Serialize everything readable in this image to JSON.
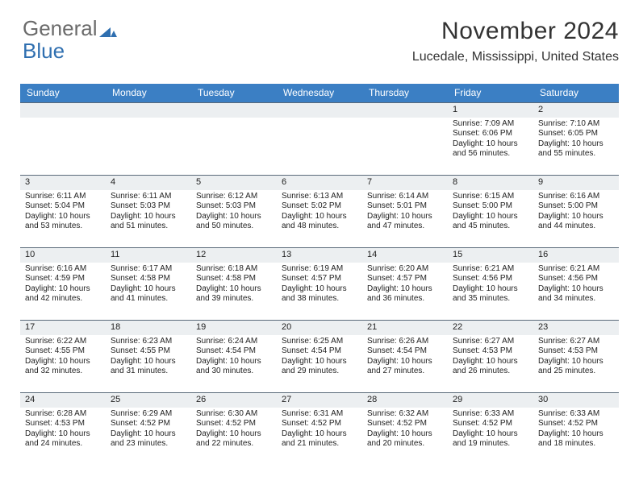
{
  "logo": {
    "text_gray": "General",
    "text_blue": "Blue",
    "mark_color": "#2f6fb0"
  },
  "header": {
    "month_title": "November 2024",
    "location": "Lucedale, Mississippi, United States"
  },
  "colors": {
    "header_row_bg": "#3b7fc4",
    "header_row_text": "#ffffff",
    "daynum_bg": "#eceff1",
    "daynum_border": "#5a6a7a"
  },
  "day_headers": [
    "Sunday",
    "Monday",
    "Tuesday",
    "Wednesday",
    "Thursday",
    "Friday",
    "Saturday"
  ],
  "weeks": [
    [
      {
        "n": "",
        "sunrise": "",
        "sunset": "",
        "daylight": ""
      },
      {
        "n": "",
        "sunrise": "",
        "sunset": "",
        "daylight": ""
      },
      {
        "n": "",
        "sunrise": "",
        "sunset": "",
        "daylight": ""
      },
      {
        "n": "",
        "sunrise": "",
        "sunset": "",
        "daylight": ""
      },
      {
        "n": "",
        "sunrise": "",
        "sunset": "",
        "daylight": ""
      },
      {
        "n": "1",
        "sunrise": "Sunrise: 7:09 AM",
        "sunset": "Sunset: 6:06 PM",
        "daylight": "Daylight: 10 hours and 56 minutes."
      },
      {
        "n": "2",
        "sunrise": "Sunrise: 7:10 AM",
        "sunset": "Sunset: 6:05 PM",
        "daylight": "Daylight: 10 hours and 55 minutes."
      }
    ],
    [
      {
        "n": "3",
        "sunrise": "Sunrise: 6:11 AM",
        "sunset": "Sunset: 5:04 PM",
        "daylight": "Daylight: 10 hours and 53 minutes."
      },
      {
        "n": "4",
        "sunrise": "Sunrise: 6:11 AM",
        "sunset": "Sunset: 5:03 PM",
        "daylight": "Daylight: 10 hours and 51 minutes."
      },
      {
        "n": "5",
        "sunrise": "Sunrise: 6:12 AM",
        "sunset": "Sunset: 5:03 PM",
        "daylight": "Daylight: 10 hours and 50 minutes."
      },
      {
        "n": "6",
        "sunrise": "Sunrise: 6:13 AM",
        "sunset": "Sunset: 5:02 PM",
        "daylight": "Daylight: 10 hours and 48 minutes."
      },
      {
        "n": "7",
        "sunrise": "Sunrise: 6:14 AM",
        "sunset": "Sunset: 5:01 PM",
        "daylight": "Daylight: 10 hours and 47 minutes."
      },
      {
        "n": "8",
        "sunrise": "Sunrise: 6:15 AM",
        "sunset": "Sunset: 5:00 PM",
        "daylight": "Daylight: 10 hours and 45 minutes."
      },
      {
        "n": "9",
        "sunrise": "Sunrise: 6:16 AM",
        "sunset": "Sunset: 5:00 PM",
        "daylight": "Daylight: 10 hours and 44 minutes."
      }
    ],
    [
      {
        "n": "10",
        "sunrise": "Sunrise: 6:16 AM",
        "sunset": "Sunset: 4:59 PM",
        "daylight": "Daylight: 10 hours and 42 minutes."
      },
      {
        "n": "11",
        "sunrise": "Sunrise: 6:17 AM",
        "sunset": "Sunset: 4:58 PM",
        "daylight": "Daylight: 10 hours and 41 minutes."
      },
      {
        "n": "12",
        "sunrise": "Sunrise: 6:18 AM",
        "sunset": "Sunset: 4:58 PM",
        "daylight": "Daylight: 10 hours and 39 minutes."
      },
      {
        "n": "13",
        "sunrise": "Sunrise: 6:19 AM",
        "sunset": "Sunset: 4:57 PM",
        "daylight": "Daylight: 10 hours and 38 minutes."
      },
      {
        "n": "14",
        "sunrise": "Sunrise: 6:20 AM",
        "sunset": "Sunset: 4:57 PM",
        "daylight": "Daylight: 10 hours and 36 minutes."
      },
      {
        "n": "15",
        "sunrise": "Sunrise: 6:21 AM",
        "sunset": "Sunset: 4:56 PM",
        "daylight": "Daylight: 10 hours and 35 minutes."
      },
      {
        "n": "16",
        "sunrise": "Sunrise: 6:21 AM",
        "sunset": "Sunset: 4:56 PM",
        "daylight": "Daylight: 10 hours and 34 minutes."
      }
    ],
    [
      {
        "n": "17",
        "sunrise": "Sunrise: 6:22 AM",
        "sunset": "Sunset: 4:55 PM",
        "daylight": "Daylight: 10 hours and 32 minutes."
      },
      {
        "n": "18",
        "sunrise": "Sunrise: 6:23 AM",
        "sunset": "Sunset: 4:55 PM",
        "daylight": "Daylight: 10 hours and 31 minutes."
      },
      {
        "n": "19",
        "sunrise": "Sunrise: 6:24 AM",
        "sunset": "Sunset: 4:54 PM",
        "daylight": "Daylight: 10 hours and 30 minutes."
      },
      {
        "n": "20",
        "sunrise": "Sunrise: 6:25 AM",
        "sunset": "Sunset: 4:54 PM",
        "daylight": "Daylight: 10 hours and 29 minutes."
      },
      {
        "n": "21",
        "sunrise": "Sunrise: 6:26 AM",
        "sunset": "Sunset: 4:54 PM",
        "daylight": "Daylight: 10 hours and 27 minutes."
      },
      {
        "n": "22",
        "sunrise": "Sunrise: 6:27 AM",
        "sunset": "Sunset: 4:53 PM",
        "daylight": "Daylight: 10 hours and 26 minutes."
      },
      {
        "n": "23",
        "sunrise": "Sunrise: 6:27 AM",
        "sunset": "Sunset: 4:53 PM",
        "daylight": "Daylight: 10 hours and 25 minutes."
      }
    ],
    [
      {
        "n": "24",
        "sunrise": "Sunrise: 6:28 AM",
        "sunset": "Sunset: 4:53 PM",
        "daylight": "Daylight: 10 hours and 24 minutes."
      },
      {
        "n": "25",
        "sunrise": "Sunrise: 6:29 AM",
        "sunset": "Sunset: 4:52 PM",
        "daylight": "Daylight: 10 hours and 23 minutes."
      },
      {
        "n": "26",
        "sunrise": "Sunrise: 6:30 AM",
        "sunset": "Sunset: 4:52 PM",
        "daylight": "Daylight: 10 hours and 22 minutes."
      },
      {
        "n": "27",
        "sunrise": "Sunrise: 6:31 AM",
        "sunset": "Sunset: 4:52 PM",
        "daylight": "Daylight: 10 hours and 21 minutes."
      },
      {
        "n": "28",
        "sunrise": "Sunrise: 6:32 AM",
        "sunset": "Sunset: 4:52 PM",
        "daylight": "Daylight: 10 hours and 20 minutes."
      },
      {
        "n": "29",
        "sunrise": "Sunrise: 6:33 AM",
        "sunset": "Sunset: 4:52 PM",
        "daylight": "Daylight: 10 hours and 19 minutes."
      },
      {
        "n": "30",
        "sunrise": "Sunrise: 6:33 AM",
        "sunset": "Sunset: 4:52 PM",
        "daylight": "Daylight: 10 hours and 18 minutes."
      }
    ]
  ]
}
